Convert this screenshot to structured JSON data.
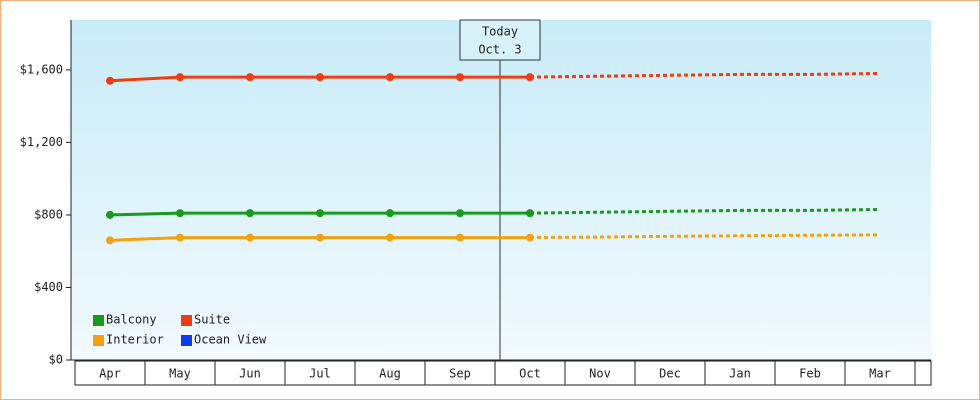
{
  "chart_data": {
    "type": "line",
    "categories": [
      "Apr",
      "May",
      "Jun",
      "Jul",
      "Aug",
      "Sep",
      "Oct",
      "Nov",
      "Dec",
      "Jan",
      "Feb",
      "Mar"
    ],
    "series": [
      {
        "name": "Balcony",
        "color": "#1a9a1a",
        "values": [
          800,
          810,
          810,
          810,
          810,
          810,
          810,
          null,
          null,
          null,
          null,
          null
        ],
        "projected": [
          null,
          null,
          null,
          null,
          null,
          null,
          810,
          815,
          820,
          825,
          825,
          830
        ]
      },
      {
        "name": "Suite",
        "color": "#f03c10",
        "values": [
          1540,
          1560,
          1560,
          1560,
          1560,
          1560,
          1560,
          null,
          null,
          null,
          null,
          null
        ],
        "projected": [
          null,
          null,
          null,
          null,
          null,
          null,
          1560,
          1565,
          1570,
          1575,
          1575,
          1580
        ]
      },
      {
        "name": "Interior",
        "color": "#f5a00f",
        "values": [
          660,
          675,
          675,
          675,
          675,
          675,
          675,
          null,
          null,
          null,
          null,
          null
        ],
        "projected": [
          null,
          null,
          null,
          null,
          null,
          null,
          675,
          678,
          682,
          685,
          688,
          690
        ]
      },
      {
        "name": "Ocean View",
        "color": "#0a3cf0",
        "values": [
          null,
          null,
          null,
          null,
          null,
          null,
          null,
          null,
          null,
          null,
          null,
          null
        ],
        "projected": [
          null,
          null,
          null,
          null,
          null,
          null,
          null,
          null,
          null,
          null,
          null,
          null
        ]
      }
    ],
    "ylim": [
      0,
      1875
    ],
    "yticks": [
      {
        "value": 0,
        "label": "$0"
      },
      {
        "value": 400,
        "label": "$400"
      },
      {
        "value": 800,
        "label": "$800"
      },
      {
        "value": 1200,
        "label": "$1,200"
      },
      {
        "value": 1600,
        "label": "$1,600"
      }
    ],
    "annotation": "Today",
    "annotation_date": "Oct. 3"
  }
}
